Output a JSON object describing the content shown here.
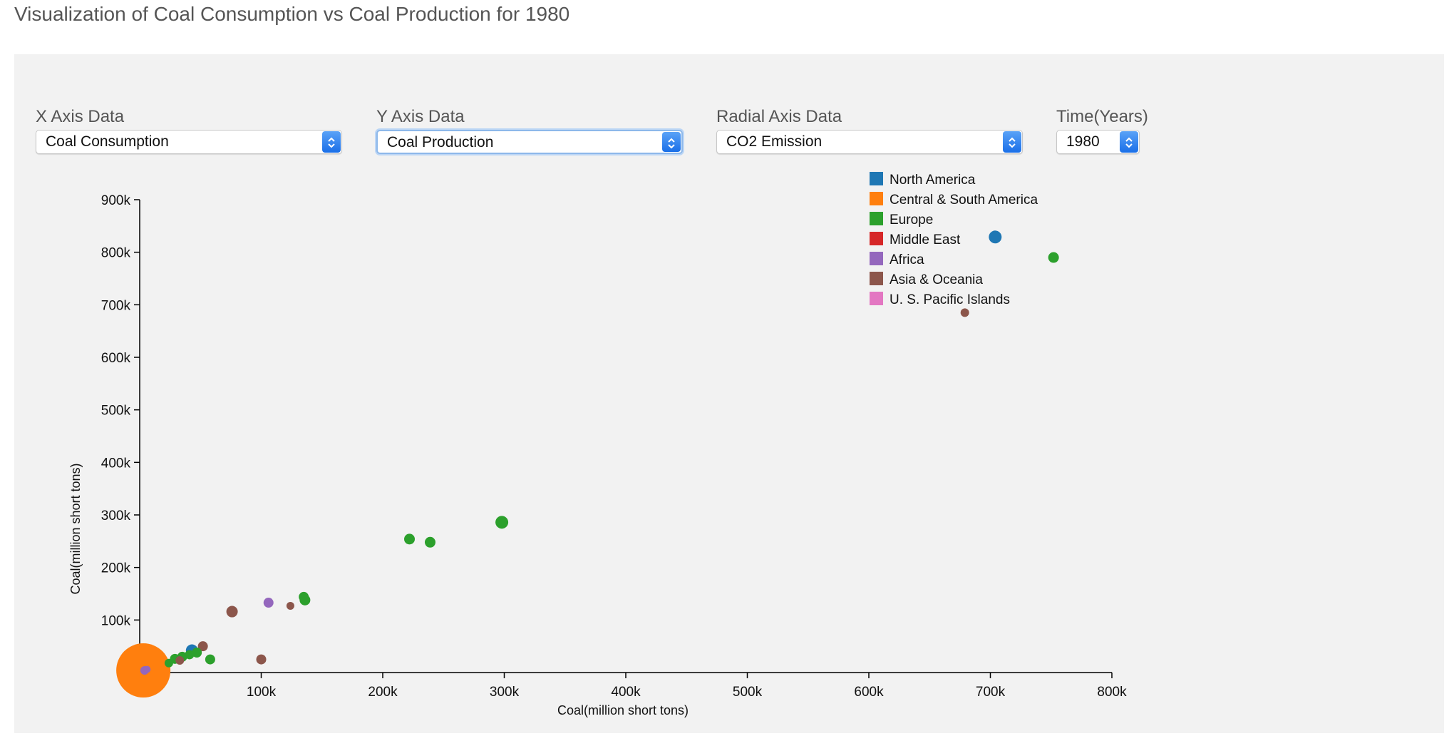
{
  "page": {
    "title": "Visualization of Coal Consumption vs Coal Production for 1980"
  },
  "controls": {
    "x_axis": {
      "label": "X Axis Data",
      "value": "Coal Consumption"
    },
    "y_axis": {
      "label": "Y Axis Data",
      "value": "Coal Production"
    },
    "radial_axis": {
      "label": "Radial Axis Data",
      "value": "CO2 Emission"
    },
    "time": {
      "label": "Time(Years)",
      "value": "1980"
    }
  },
  "icons": {
    "select_arrow": "chevron-up-down-icon"
  },
  "chart_data": {
    "type": "scatter",
    "xlabel": "Coal(million short tons)",
    "ylabel": "Coal(million short tons)",
    "xlim": [
      0,
      800000
    ],
    "ylim": [
      0,
      900000
    ],
    "x_ticks": [
      100000,
      200000,
      300000,
      400000,
      500000,
      600000,
      700000,
      800000
    ],
    "x_tick_labels": [
      "100k",
      "200k",
      "300k",
      "400k",
      "500k",
      "600k",
      "700k",
      "800k"
    ],
    "y_ticks": [
      100000,
      200000,
      300000,
      400000,
      500000,
      600000,
      700000,
      800000,
      900000
    ],
    "y_tick_labels": [
      "100k",
      "200k",
      "300k",
      "400k",
      "500k",
      "600k",
      "700k",
      "800k",
      "900k"
    ],
    "grid": false,
    "legend_position": "top-right",
    "legend": [
      {
        "name": "North America",
        "color": "#1f77b4"
      },
      {
        "name": "Central & South America",
        "color": "#ff7f0e"
      },
      {
        "name": "Europe",
        "color": "#2ca02c"
      },
      {
        "name": "Middle East",
        "color": "#d62728"
      },
      {
        "name": "Africa",
        "color": "#9467bd"
      },
      {
        "name": "Asia & Oceania",
        "color": "#8c564b"
      },
      {
        "name": "U. S. Pacific Islands",
        "color": "#e377c2"
      }
    ],
    "points": [
      {
        "region": "North America",
        "x": 704000,
        "y": 829000,
        "r": 9
      },
      {
        "region": "Europe",
        "x": 752000,
        "y": 790000,
        "r": 7.5
      },
      {
        "region": "Asia & Oceania",
        "x": 679000,
        "y": 685000,
        "r": 6
      },
      {
        "region": "Europe",
        "x": 298000,
        "y": 286000,
        "r": 9
      },
      {
        "region": "Europe",
        "x": 222000,
        "y": 254000,
        "r": 7.5
      },
      {
        "region": "Europe",
        "x": 239000,
        "y": 248000,
        "r": 7.5
      },
      {
        "region": "Europe",
        "x": 135000,
        "y": 144000,
        "r": 7
      },
      {
        "region": "Europe",
        "x": 136000,
        "y": 138000,
        "r": 7.5
      },
      {
        "region": "Africa",
        "x": 106000,
        "y": 133000,
        "r": 7
      },
      {
        "region": "Asia & Oceania",
        "x": 124000,
        "y": 127000,
        "r": 5.5
      },
      {
        "region": "Asia & Oceania",
        "x": 76000,
        "y": 116000,
        "r": 8
      },
      {
        "region": "Asia & Oceania",
        "x": 52000,
        "y": 50000,
        "r": 7
      },
      {
        "region": "North America",
        "x": 43000,
        "y": 42000,
        "r": 8.5
      },
      {
        "region": "Europe",
        "x": 47000,
        "y": 38000,
        "r": 7
      },
      {
        "region": "Europe",
        "x": 41000,
        "y": 34000,
        "r": 6.5
      },
      {
        "region": "Europe",
        "x": 35000,
        "y": 30000,
        "r": 7
      },
      {
        "region": "Europe",
        "x": 29000,
        "y": 26000,
        "r": 7
      },
      {
        "region": "Asia & Oceania",
        "x": 33000,
        "y": 23000,
        "r": 6
      },
      {
        "region": "Europe",
        "x": 58000,
        "y": 25000,
        "r": 7
      },
      {
        "region": "Asia & Oceania",
        "x": 100000,
        "y": 25000,
        "r": 7
      },
      {
        "region": "Europe",
        "x": 24000,
        "y": 18000,
        "r": 6
      },
      {
        "region": "Central & South America",
        "x": 3000,
        "y": 4000,
        "r": 38
      },
      {
        "region": "Africa",
        "x": 4000,
        "y": 4000,
        "r": 6
      },
      {
        "region": "Africa",
        "x": 6000,
        "y": 6000,
        "r": 5
      }
    ]
  }
}
